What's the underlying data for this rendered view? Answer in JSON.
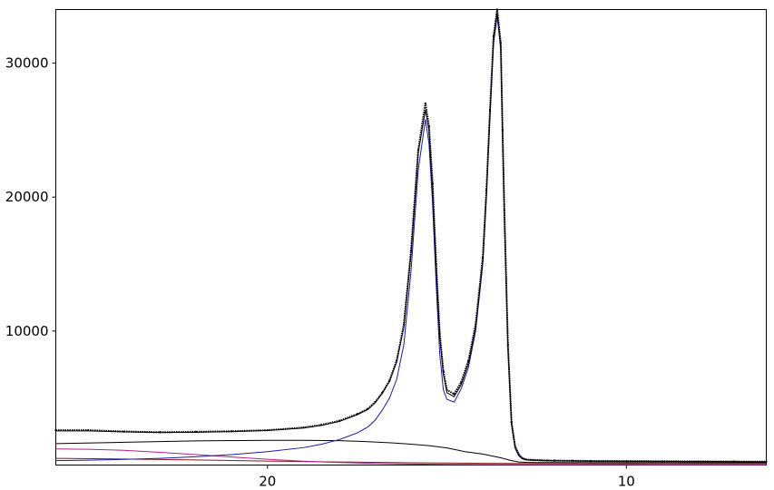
{
  "chart_data": {
    "type": "line",
    "title": "",
    "xlabel": "",
    "ylabel": "",
    "x_reversed": true,
    "xlim": [
      25.9,
      6.1
    ],
    "ylim": [
      0,
      34000
    ],
    "x_ticks": [
      {
        "value": 20,
        "label": "20"
      },
      {
        "value": 10,
        "label": "10"
      }
    ],
    "y_ticks": [
      {
        "value": 10000,
        "label": "10000"
      },
      {
        "value": 20000,
        "label": "20000"
      },
      {
        "value": 30000,
        "label": "30000"
      }
    ],
    "grid": false,
    "legend": "none",
    "series": [
      {
        "role": "observed",
        "color": "#000000",
        "style": "dotted-markers",
        "x": [
          25.9,
          25,
          24,
          23,
          22,
          21,
          20,
          19,
          18.5,
          18,
          17.5,
          17.2,
          17,
          16.8,
          16.6,
          16.4,
          16.2,
          16,
          15.8,
          15.6,
          15.5,
          15.4,
          15.3,
          15.2,
          15.1,
          15,
          14.8,
          14.6,
          14.4,
          14.2,
          14,
          13.9,
          13.8,
          13.7,
          13.6,
          13.5,
          13.45,
          13.4,
          13.3,
          13.2,
          13.1,
          13,
          12.9,
          12.8,
          12.6,
          12.4,
          12.2,
          12,
          11.5,
          11,
          10,
          9,
          8,
          7,
          6.1
        ],
        "y": [
          2600,
          2600,
          2500,
          2450,
          2480,
          2520,
          2600,
          2800,
          3000,
          3300,
          3800,
          4200,
          4700,
          5400,
          6300,
          7800,
          10500,
          16000,
          23500,
          27000,
          25300,
          21000,
          15000,
          9800,
          7000,
          5600,
          5300,
          6200,
          7800,
          10500,
          15500,
          20500,
          26500,
          32000,
          34000,
          31500,
          25000,
          19000,
          9000,
          3200,
          1400,
          800,
          520,
          420,
          380,
          360,
          340,
          330,
          320,
          300,
          290,
          280,
          270,
          260,
          250
        ]
      },
      {
        "role": "total-fit",
        "color": "#000000",
        "style": "line",
        "x": [
          25.9,
          25,
          24,
          23,
          22,
          21,
          20,
          19,
          18.5,
          18,
          17.5,
          17.2,
          17,
          16.8,
          16.6,
          16.4,
          16.2,
          16,
          15.8,
          15.6,
          15.5,
          15.4,
          15.3,
          15.2,
          15.1,
          15,
          14.8,
          14.6,
          14.4,
          14.2,
          14,
          13.9,
          13.8,
          13.7,
          13.6,
          13.5,
          13.45,
          13.4,
          13.3,
          13.2,
          13.1,
          13,
          12.9,
          12.8,
          12.6,
          12.4,
          12.2,
          12,
          11.5,
          11,
          10,
          9,
          8,
          7,
          6.1
        ],
        "y": [
          2550,
          2550,
          2480,
          2430,
          2450,
          2500,
          2580,
          2760,
          2950,
          3250,
          3750,
          4150,
          4650,
          5350,
          6250,
          7700,
          10300,
          15800,
          23300,
          26500,
          25000,
          20700,
          14700,
          9600,
          6800,
          5400,
          5100,
          6000,
          7600,
          10300,
          15300,
          20300,
          26300,
          31800,
          33800,
          31300,
          24800,
          18800,
          8900,
          3150,
          1350,
          780,
          510,
          410,
          370,
          350,
          335,
          325,
          315,
          298,
          288,
          278,
          268,
          258,
          248
        ]
      },
      {
        "role": "peak-component",
        "color": "#1a1aa8",
        "style": "line",
        "x": [
          25.9,
          25,
          24,
          23,
          22,
          21,
          20,
          19,
          18.5,
          18,
          17.5,
          17.2,
          17,
          16.8,
          16.6,
          16.4,
          16.2,
          16,
          15.8,
          15.6,
          15.5,
          15.4,
          15.3,
          15.2,
          15.1,
          15,
          14.8,
          14.6,
          14.4,
          14.2,
          14,
          13.9,
          13.8,
          13.7,
          13.6,
          13.5,
          13.45,
          13.4,
          13.3,
          13.2,
          13.1,
          13,
          12.9,
          12.8,
          12.6,
          12.4,
          12.2,
          12,
          11.5,
          11,
          10,
          9,
          8,
          7,
          6.1
        ],
        "y": [
          330,
          360,
          420,
          500,
          620,
          780,
          1000,
          1300,
          1550,
          1900,
          2400,
          2850,
          3350,
          4100,
          5000,
          6400,
          9000,
          14500,
          22000,
          25800,
          24000,
          19500,
          13500,
          8300,
          5600,
          4900,
          4700,
          5700,
          7300,
          10000,
          15000,
          20000,
          26000,
          31500,
          33500,
          31000,
          24500,
          18500,
          8700,
          3000,
          1250,
          700,
          460,
          380,
          350,
          330,
          320,
          310,
          300,
          290,
          280,
          270,
          260,
          250,
          240
        ]
      },
      {
        "role": "baseline-component",
        "color": "#000000",
        "style": "line",
        "x": [
          25.9,
          24,
          22,
          20,
          19,
          18,
          17.5,
          17,
          16.5,
          16,
          15.5,
          15,
          14.5,
          14,
          13.5,
          13.2,
          13,
          12.8,
          12.5,
          12,
          11,
          10,
          9,
          8,
          7,
          6.1
        ],
        "y": [
          1600,
          1700,
          1800,
          1850,
          1850,
          1820,
          1780,
          1720,
          1650,
          1560,
          1450,
          1280,
          1000,
          820,
          540,
          330,
          230,
          200,
          190,
          185,
          180,
          178,
          175,
          172,
          170,
          168
        ]
      },
      {
        "role": "broad-component",
        "color": "#b0208a",
        "style": "line",
        "x": [
          25.9,
          25,
          24,
          23,
          22,
          21,
          20,
          19,
          18,
          17.5,
          17,
          16,
          15,
          14,
          13,
          12,
          11,
          10,
          9,
          8,
          7,
          6.1
        ],
        "y": [
          1200,
          1180,
          1100,
          950,
          780,
          600,
          430,
          290,
          190,
          150,
          120,
          80,
          55,
          40,
          32,
          28,
          25,
          22,
          20,
          18,
          16,
          15
        ]
      },
      {
        "role": "background-component",
        "color": "#8b1a1a",
        "style": "line",
        "x": [
          25.9,
          24,
          22,
          20,
          18,
          16,
          14,
          12,
          10,
          8,
          6.1
        ],
        "y": [
          500,
          450,
          380,
          300,
          230,
          170,
          130,
          110,
          100,
          95,
          92
        ]
      }
    ]
  }
}
